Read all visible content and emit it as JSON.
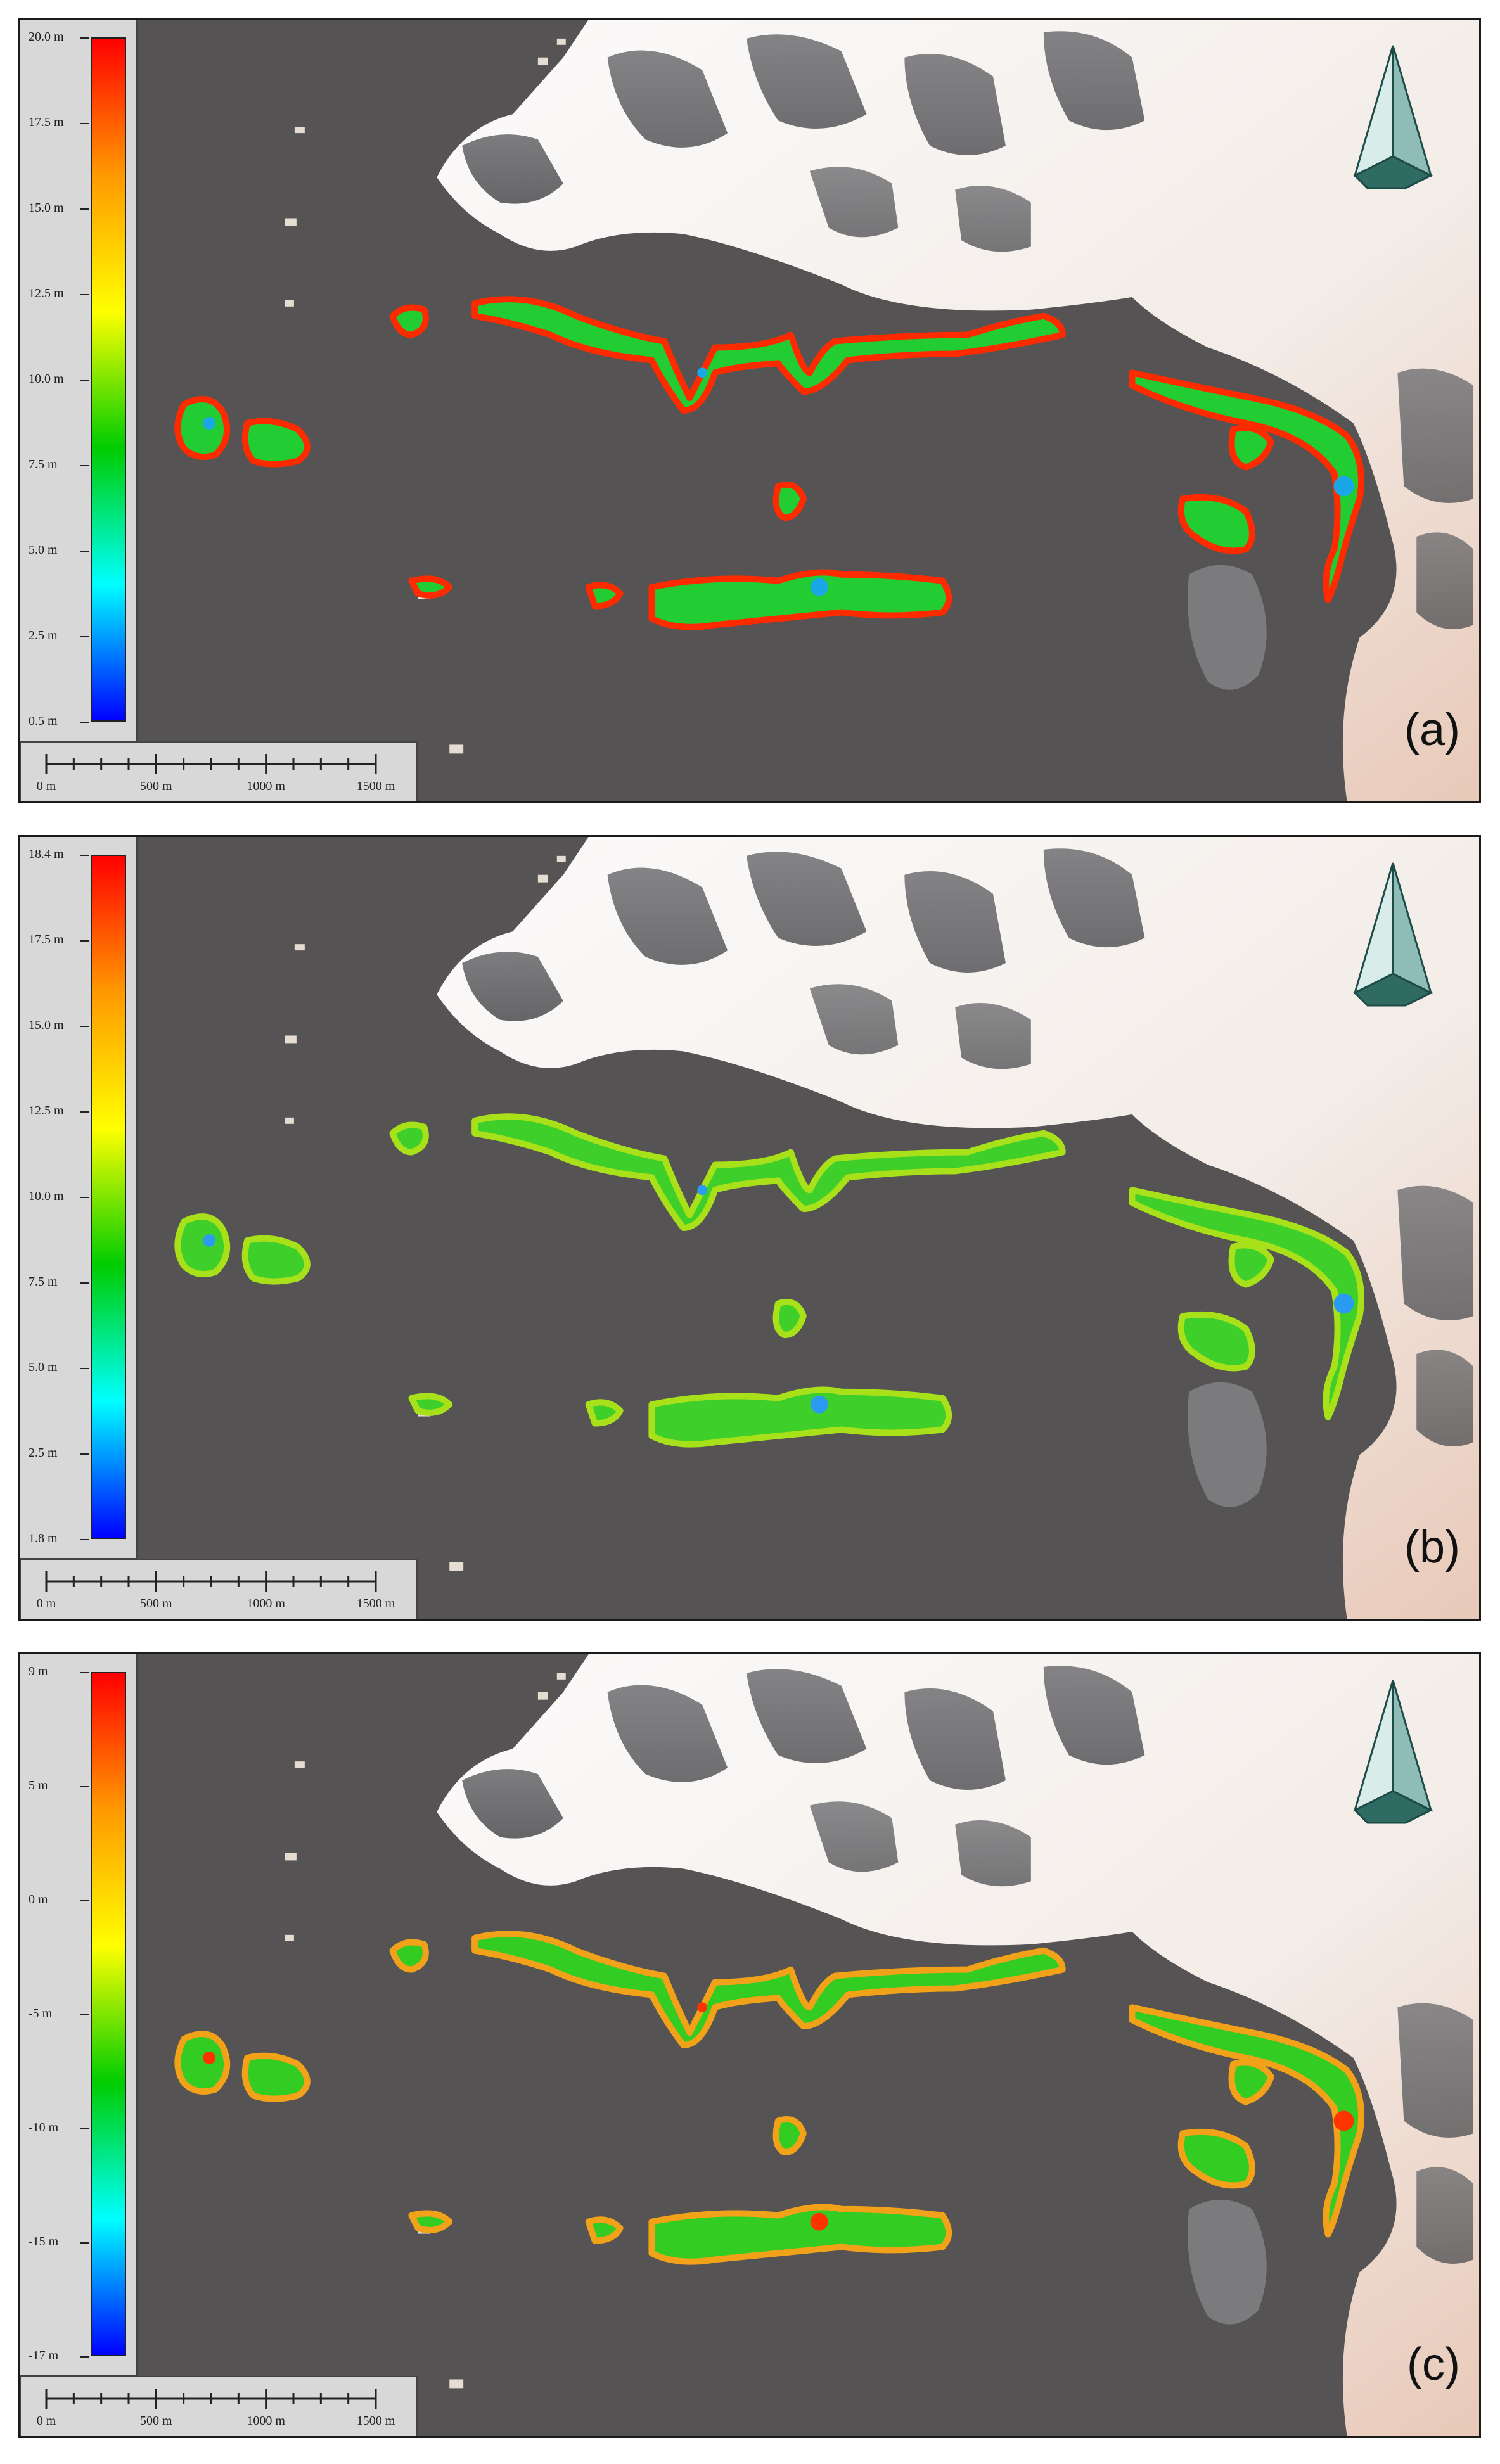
{
  "panels": [
    {
      "label": "(a)",
      "legend": {
        "max": "20.0 m",
        "min": "0.5 m",
        "ticks": [
          "17.5 m",
          "15.0 m",
          "12.5 m",
          "10.0 m",
          "7.5 m",
          "5.0 m",
          "2.5 m"
        ]
      },
      "palette": "warm-edge"
    },
    {
      "label": "(b)",
      "legend": {
        "max": "18.4 m",
        "min": "1.8 m",
        "ticks": [
          "17.5 m",
          "15.0 m",
          "12.5 m",
          "10.0 m",
          "7.5 m",
          "5.0 m",
          "2.5 m"
        ]
      },
      "palette": "green"
    },
    {
      "label": "(c)",
      "legend": {
        "max": "9 m",
        "min": "-17 m",
        "ticks": [
          "5 m",
          "0 m",
          "-5 m",
          "-10 m",
          "-15 m"
        ]
      },
      "palette": "green-orange"
    }
  ],
  "scale_bar": {
    "labels": [
      "0 m",
      "500 m",
      "1000 m",
      "1500 m"
    ]
  },
  "colors": {
    "water": "#555353",
    "ramp": [
      "#ff0000",
      "#ff9900",
      "#ffff00",
      "#00cc00",
      "#00ffff",
      "#0000ff"
    ]
  },
  "icons": {
    "north_arrow": "north-arrow-icon"
  }
}
